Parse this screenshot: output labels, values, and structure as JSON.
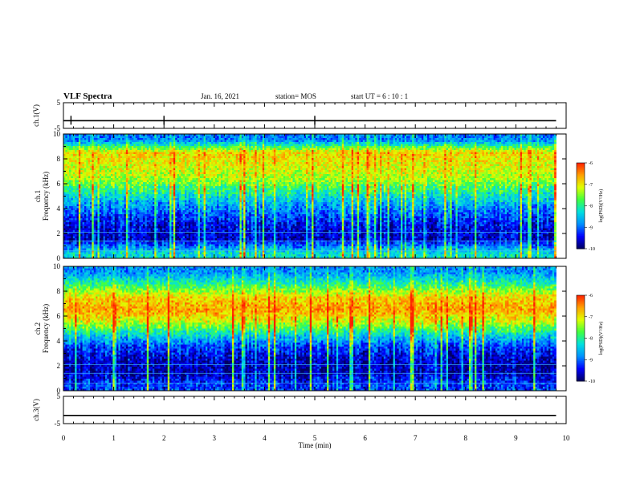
{
  "header": {
    "title": "VLF Spectra",
    "date": "Jan. 16, 2021",
    "station": "station= MOS",
    "start_ut": "start UT =  6 : 10 : 1"
  },
  "chart_data": [
    {
      "type": "line",
      "panel": "ch1-waveform",
      "ylabel": "ch.1(V)",
      "ylim": [
        -5,
        5
      ],
      "y_ticks": [
        "5",
        "-5"
      ],
      "series": [
        {
          "values_description_mean": -2
        }
      ],
      "mean_level": -2
    },
    {
      "type": "heatmap",
      "panel": "ch1-spectrogram",
      "ylabel_top": "ch.1",
      "ylabel": "Frequency (kHz)",
      "ylim": [
        0,
        10
      ],
      "y_ticks": [
        "0",
        "2",
        "4",
        "6",
        "8",
        "10"
      ],
      "xlim": [
        0,
        10
      ],
      "data_extent_min": 9.8,
      "colorbar": {
        "label": "log(PSD)(V²/Hz)",
        "range": [
          -10,
          -6
        ],
        "ticks": [
          "-6",
          "-7",
          "-8",
          "-9",
          "-10"
        ]
      },
      "band_intensity": [
        {
          "f": 0.5,
          "level": -8.3
        },
        {
          "f": 1.5,
          "level": -9.6
        },
        {
          "f": 2.5,
          "level": -9.5
        },
        {
          "f": 3.5,
          "level": -9.1
        },
        {
          "f": 4.5,
          "level": -8.6
        },
        {
          "f": 5.5,
          "level": -7.9
        },
        {
          "f": 6.5,
          "level": -7.3
        },
        {
          "f": 7.5,
          "level": -7.1
        },
        {
          "f": 8.5,
          "level": -6.9
        },
        {
          "f": 9.5,
          "level": -8.9
        }
      ]
    },
    {
      "type": "heatmap",
      "panel": "ch2-spectrogram",
      "ylabel_top": "ch.2",
      "ylabel": "Frequency (kHz)",
      "ylim": [
        0,
        10
      ],
      "y_ticks": [
        "0",
        "2",
        "4",
        "6",
        "8",
        "10"
      ],
      "xlim": [
        0,
        10
      ],
      "data_extent_min": 9.8,
      "colorbar": {
        "label": "log(PSD)(V²/Hz)",
        "range": [
          -10,
          -6
        ],
        "ticks": [
          "-6",
          "-7",
          "-8",
          "-9",
          "-10"
        ]
      },
      "band_intensity": [
        {
          "f": 0.5,
          "level": -9.2
        },
        {
          "f": 1.5,
          "level": -9.7
        },
        {
          "f": 2.5,
          "level": -9.6
        },
        {
          "f": 3.5,
          "level": -9.2
        },
        {
          "f": 4.5,
          "level": -8.3
        },
        {
          "f": 5.5,
          "level": -7.2
        },
        {
          "f": 6.5,
          "level": -6.6
        },
        {
          "f": 7.5,
          "level": -6.9
        },
        {
          "f": 8.5,
          "level": -7.9
        },
        {
          "f": 9.5,
          "level": -8.8
        }
      ]
    },
    {
      "type": "line",
      "panel": "ch3-waveform",
      "ylabel": "ch.3(V)",
      "ylim": [
        -5,
        5
      ],
      "y_ticks": [
        "5",
        "-5"
      ],
      "mean_level": -2
    }
  ],
  "x_axis": {
    "label": "Time  (min)",
    "range": [
      0,
      10
    ],
    "ticks": [
      "0",
      "1",
      "2",
      "3",
      "4",
      "5",
      "6",
      "7",
      "8",
      "9",
      "10"
    ]
  },
  "colors": {
    "scale": [
      "#000060",
      "#0000ff",
      "#0090ff",
      "#00e0e0",
      "#40ff40",
      "#e0ff00",
      "#ffa000",
      "#ff2000"
    ]
  }
}
